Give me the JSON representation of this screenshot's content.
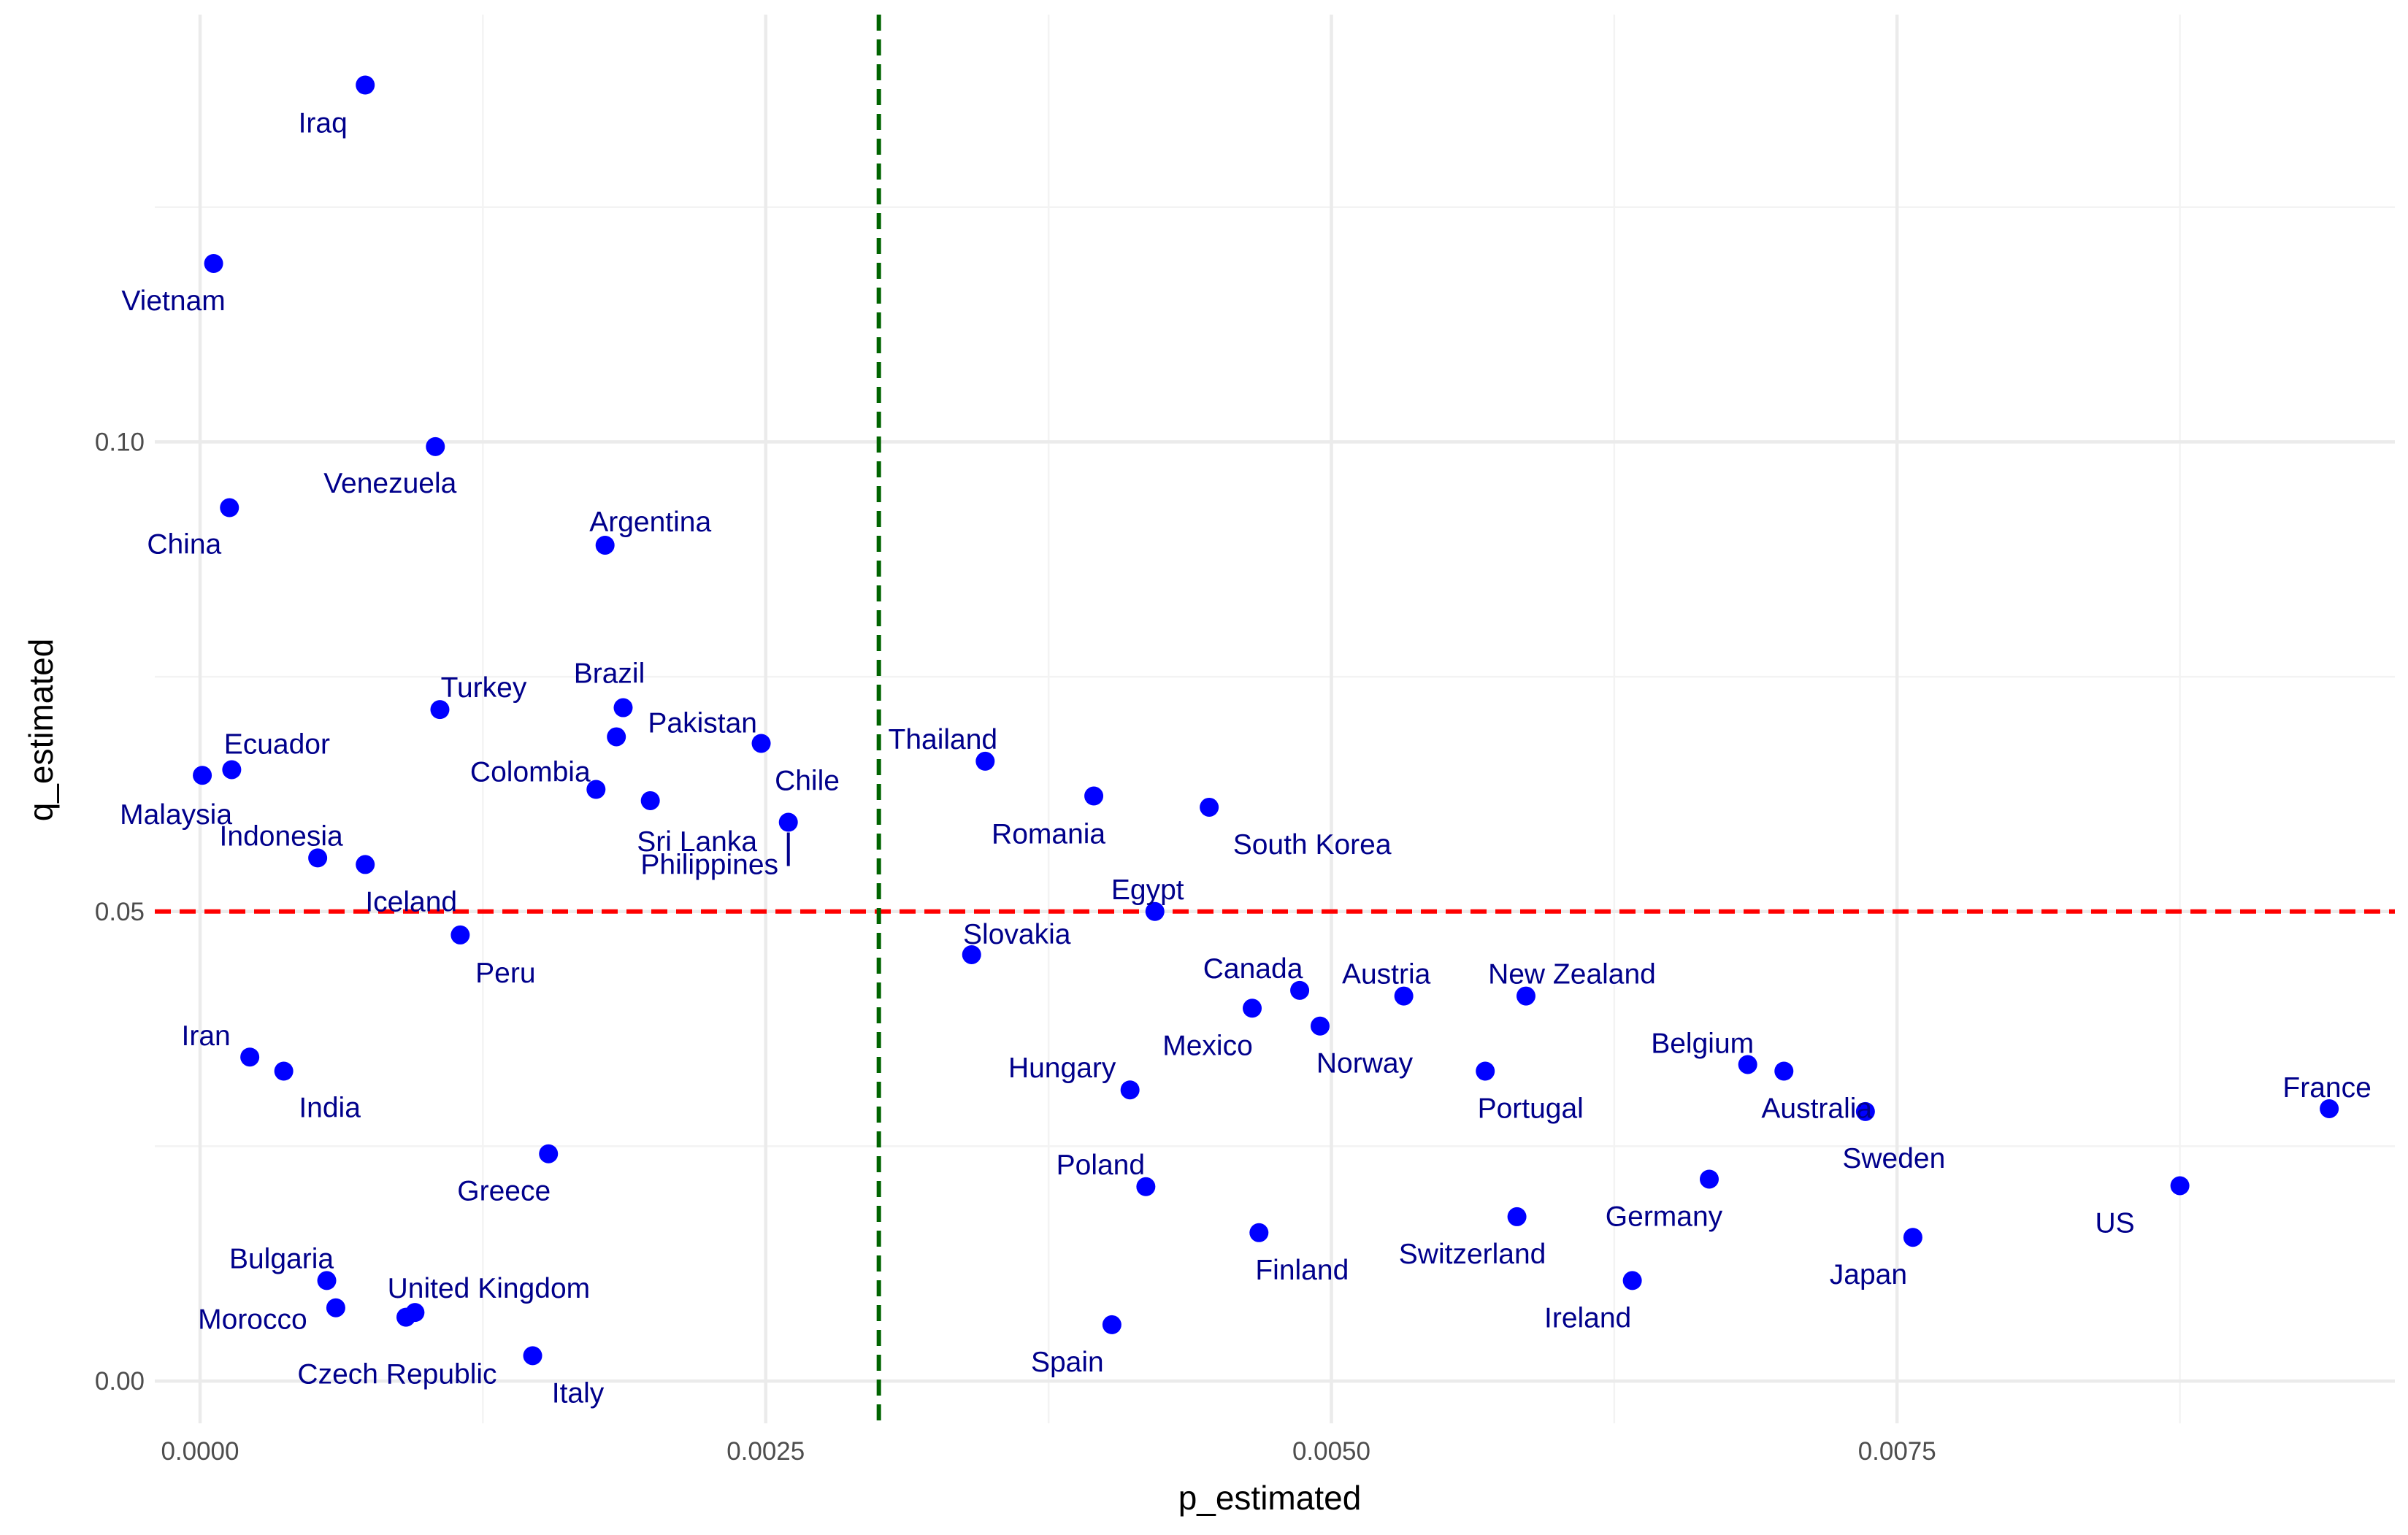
{
  "chart_data": {
    "type": "scatter",
    "xlabel": "p_estimated",
    "ylabel": "q_estimated",
    "xlim": [
      -0.0002,
      0.0097
    ],
    "ylim": [
      -0.0045,
      0.1455
    ],
    "x_ticks": [
      {
        "value": 0.0,
        "label": "0.0000"
      },
      {
        "value": 0.0025,
        "label": "0.0025"
      },
      {
        "value": 0.005,
        "label": "0.0050"
      },
      {
        "value": 0.0075,
        "label": "0.0075"
      }
    ],
    "y_ticks": [
      {
        "value": 0.0,
        "label": "0.00"
      },
      {
        "value": 0.05,
        "label": "0.05"
      },
      {
        "value": 0.1,
        "label": "0.10"
      }
    ],
    "grid": true,
    "reference_lines": [
      {
        "orientation": "horizontal",
        "value": 0.05,
        "color": "#ff0000",
        "style": "dashed"
      },
      {
        "orientation": "vertical",
        "value": 0.003,
        "color": "#006400",
        "style": "dashed"
      }
    ],
    "point_color": "#0000ff",
    "label_color": "#00008b",
    "points": [
      {
        "name": "Iraq",
        "x": 0.00073,
        "y": 0.138
      },
      {
        "name": "Vietnam",
        "x": 6e-05,
        "y": 0.119
      },
      {
        "name": "Venezuela",
        "x": 0.00104,
        "y": 0.0995
      },
      {
        "name": "China",
        "x": 0.00013,
        "y": 0.093
      },
      {
        "name": "Argentina",
        "x": 0.00179,
        "y": 0.089
      },
      {
        "name": "Turkey",
        "x": 0.00106,
        "y": 0.0715
      },
      {
        "name": "Brazil",
        "x": 0.00187,
        "y": 0.0717
      },
      {
        "name": "Pakistan",
        "x": 0.00184,
        "y": 0.0686
      },
      {
        "name": "Chile",
        "x": 0.00248,
        "y": 0.0679
      },
      {
        "name": "Ecuador",
        "x": 0.00014,
        "y": 0.0651
      },
      {
        "name": "Malaysia",
        "x": 1e-05,
        "y": 0.0645
      },
      {
        "name": "Colombia",
        "x": 0.00175,
        "y": 0.063
      },
      {
        "name": "Sri Lanka",
        "x": 0.00199,
        "y": 0.0618
      },
      {
        "name": "Philippines",
        "x": 0.0026,
        "y": 0.0595
      },
      {
        "name": "Indonesia",
        "x": 0.00052,
        "y": 0.0557
      },
      {
        "name": "Iceland",
        "x": 0.00073,
        "y": 0.055
      },
      {
        "name": "Peru",
        "x": 0.00115,
        "y": 0.0475
      },
      {
        "name": "Iran",
        "x": 0.00022,
        "y": 0.0345
      },
      {
        "name": "India",
        "x": 0.00037,
        "y": 0.033
      },
      {
        "name": "Greece",
        "x": 0.00154,
        "y": 0.0242
      },
      {
        "name": "Bulgaria",
        "x": 0.00056,
        "y": 0.0107
      },
      {
        "name": "Morocco",
        "x": 0.0006,
        "y": 0.0078
      },
      {
        "name": "United Kingdom",
        "x": 0.00095,
        "y": 0.0073
      },
      {
        "name": "Czech Republic",
        "x": 0.00091,
        "y": 0.0068
      },
      {
        "name": "Italy",
        "x": 0.00147,
        "y": 0.0027
      },
      {
        "name": "Thailand",
        "x": 0.00347,
        "y": 0.066
      },
      {
        "name": "Romania",
        "x": 0.00395,
        "y": 0.0623
      },
      {
        "name": "South Korea",
        "x": 0.00446,
        "y": 0.0611
      },
      {
        "name": "Egypt",
        "x": 0.00422,
        "y": 0.05
      },
      {
        "name": "Slovakia",
        "x": 0.00341,
        "y": 0.0454
      },
      {
        "name": "Canada",
        "x": 0.00486,
        "y": 0.0416
      },
      {
        "name": "Austria",
        "x": 0.00532,
        "y": 0.041
      },
      {
        "name": "New Zealand",
        "x": 0.00586,
        "y": 0.041
      },
      {
        "name": "Mexico",
        "x": 0.00465,
        "y": 0.0397
      },
      {
        "name": "Norway",
        "x": 0.00495,
        "y": 0.0378
      },
      {
        "name": "Hungary",
        "x": 0.00411,
        "y": 0.031
      },
      {
        "name": "Portugal",
        "x": 0.00568,
        "y": 0.033
      },
      {
        "name": "Belgium",
        "x": 0.00684,
        "y": 0.0337
      },
      {
        "name": "Australia",
        "x": 0.007,
        "y": 0.033
      },
      {
        "name": "Sweden",
        "x": 0.00736,
        "y": 0.0287
      },
      {
        "name": "France",
        "x": 0.00941,
        "y": 0.029
      },
      {
        "name": "Poland",
        "x": 0.00418,
        "y": 0.0207
      },
      {
        "name": "Germany",
        "x": 0.00667,
        "y": 0.0215
      },
      {
        "name": "US",
        "x": 0.00875,
        "y": 0.0208
      },
      {
        "name": "Switzerland",
        "x": 0.00582,
        "y": 0.0175
      },
      {
        "name": "Finland",
        "x": 0.00468,
        "y": 0.0158
      },
      {
        "name": "Japan",
        "x": 0.00757,
        "y": 0.0153
      },
      {
        "name": "Ireland",
        "x": 0.00633,
        "y": 0.0107
      },
      {
        "name": "Spain",
        "x": 0.00403,
        "y": 0.006
      }
    ]
  }
}
